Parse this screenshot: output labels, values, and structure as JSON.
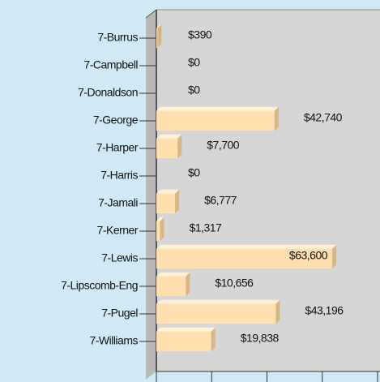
{
  "chart_data": {
    "type": "bar",
    "orientation": "horizontal",
    "categories": [
      "7-Burrus",
      "7-Campbell",
      "7-Donaldson",
      "7-George",
      "7-Harper",
      "7-Harris",
      "7-Jamali",
      "7-Kerner",
      "7-Lewis",
      "7-Lipscomb-Eng",
      "7-Pugel",
      "7-Williams"
    ],
    "values": [
      390,
      0,
      0,
      42740,
      7700,
      0,
      6777,
      1317,
      63600,
      10656,
      43196,
      19838
    ],
    "value_labels": [
      "$390",
      "$0",
      "$0",
      "$42,740",
      "$7,700",
      "$0",
      "$6,777",
      "$1,317",
      "$63,600",
      "$10,656",
      "$43,196",
      "$19,838"
    ],
    "color": "#ffdfae",
    "xlim": [
      0,
      80000
    ],
    "xticks": [
      0,
      20000,
      40000,
      60000,
      80000
    ]
  }
}
